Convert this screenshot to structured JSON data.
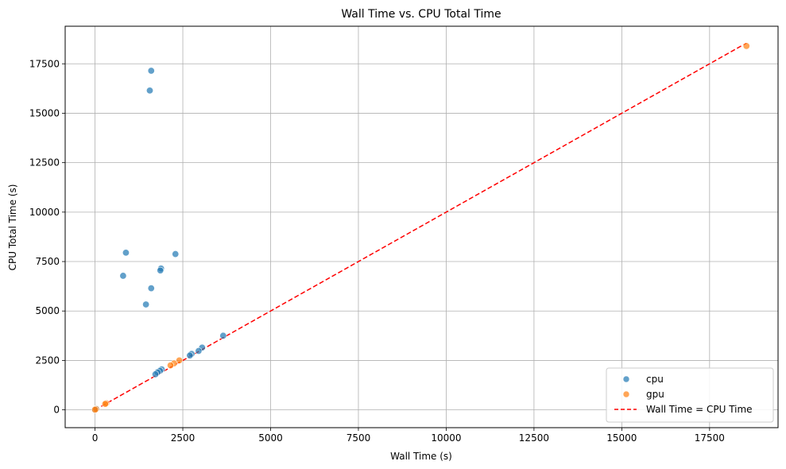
{
  "chart_data": {
    "type": "scatter",
    "title": "Wall Time vs. CPU Total Time",
    "xlabel": "Wall Time (s)",
    "ylabel": "CPU Total Time (s)",
    "xlim": [
      -850,
      19450
    ],
    "ylim": [
      -900,
      19400
    ],
    "xticks": [
      0,
      2500,
      5000,
      7500,
      10000,
      12500,
      15000,
      17500
    ],
    "yticks": [
      0,
      2500,
      5000,
      7500,
      10000,
      12500,
      15000,
      17500
    ],
    "grid": true,
    "legend_position": "lower-right",
    "series": [
      {
        "name": "cpu",
        "color": "#1f77b4",
        "points": [
          [
            1600,
            17150
          ],
          [
            1560,
            16150
          ],
          [
            880,
            7950
          ],
          [
            2290,
            7880
          ],
          [
            1880,
            7150
          ],
          [
            1860,
            7050
          ],
          [
            800,
            6780
          ],
          [
            1600,
            6150
          ],
          [
            1450,
            5330
          ],
          [
            3650,
            3750
          ],
          [
            3050,
            3150
          ],
          [
            2950,
            2980
          ],
          [
            2750,
            2830
          ],
          [
            2700,
            2750
          ],
          [
            1900,
            2050
          ],
          [
            1850,
            1980
          ],
          [
            1780,
            1900
          ],
          [
            1720,
            1800
          ],
          [
            0,
            20
          ],
          [
            40,
            60
          ]
        ]
      },
      {
        "name": "gpu",
        "color": "#ff7f0e",
        "points": [
          [
            18550,
            18400
          ],
          [
            2400,
            2500
          ],
          [
            2250,
            2350
          ],
          [
            2150,
            2250
          ],
          [
            320,
            330
          ],
          [
            290,
            300
          ],
          [
            30,
            40
          ],
          [
            0,
            10
          ]
        ]
      }
    ],
    "reference_line": {
      "name": "Wall Time = CPU Time",
      "color": "#ff0000",
      "style": "dashed",
      "from": [
        0,
        0
      ],
      "to": [
        18550,
        18550
      ]
    }
  }
}
